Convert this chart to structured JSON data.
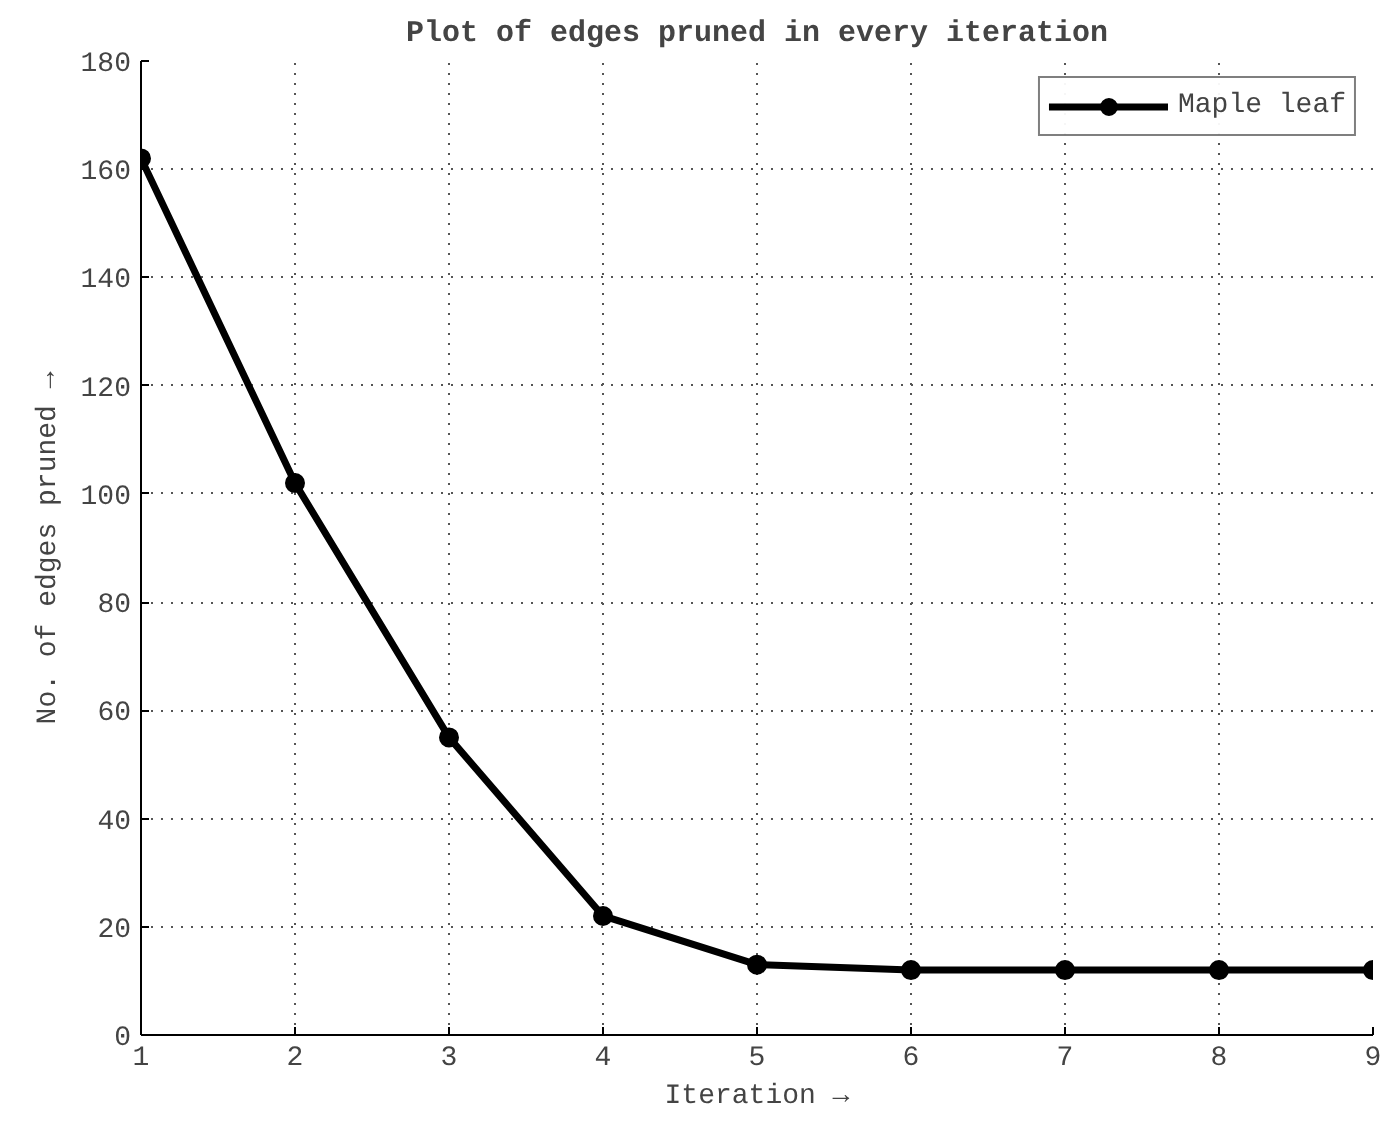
{
  "chart_data": {
    "type": "line",
    "title": "Plot of edges pruned in every iteration",
    "xlabel": "Iteration →",
    "ylabel": "No. of edges pruned →",
    "x": [
      1,
      2,
      3,
      4,
      5,
      6,
      7,
      8,
      9
    ],
    "series": [
      {
        "name": "Maple leaf",
        "color": "#000000",
        "values": [
          162,
          102,
          55,
          22,
          13,
          12,
          12,
          12,
          12
        ]
      }
    ],
    "xlim": [
      1,
      9
    ],
    "ylim": [
      0,
      180
    ],
    "xticks": [
      1,
      2,
      3,
      4,
      5,
      6,
      7,
      8,
      9
    ],
    "yticks": [
      0,
      20,
      40,
      60,
      80,
      100,
      120,
      140,
      160,
      180
    ],
    "grid": true,
    "legend": "top right",
    "marker": "circle",
    "line_style": "solid"
  }
}
